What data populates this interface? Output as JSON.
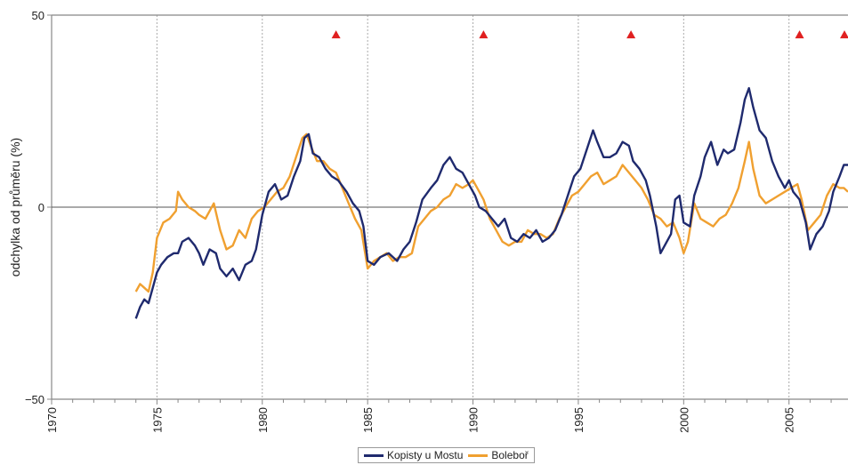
{
  "chart_data": {
    "type": "line",
    "ylabel": "odchylka od průměru (%)",
    "xlim": [
      1970,
      2007.8
    ],
    "ylim": [
      -50,
      50
    ],
    "x_ticks": [
      1970,
      1975,
      1980,
      1985,
      1990,
      1995,
      2000,
      2005
    ],
    "y_ticks": [
      50,
      0,
      -50
    ],
    "y_tick_labels": [
      "50",
      "0",
      "−50"
    ],
    "grid": "vertical-dotted",
    "legend_position": "bottom-center",
    "zero_line": true,
    "colors": {
      "series1": "#1f2a6e",
      "series2": "#f0a030",
      "marker": "#e02020",
      "axis": "#888888",
      "grid": "#aaaaaa"
    },
    "series": [
      {
        "name": "Kopisty u Mostu",
        "color": "#1f2a6e",
        "points": [
          [
            1974.0,
            -29
          ],
          [
            1974.2,
            -26
          ],
          [
            1974.4,
            -24
          ],
          [
            1974.6,
            -25
          ],
          [
            1974.8,
            -21
          ],
          [
            1975.0,
            -17
          ],
          [
            1975.2,
            -15
          ],
          [
            1975.5,
            -13
          ],
          [
            1975.8,
            -12
          ],
          [
            1976.0,
            -12
          ],
          [
            1976.2,
            -9
          ],
          [
            1976.5,
            -8
          ],
          [
            1976.8,
            -10
          ],
          [
            1977.0,
            -12
          ],
          [
            1977.2,
            -15
          ],
          [
            1977.5,
            -11
          ],
          [
            1977.8,
            -12
          ],
          [
            1978.0,
            -16
          ],
          [
            1978.3,
            -18
          ],
          [
            1978.6,
            -16
          ],
          [
            1978.9,
            -19
          ],
          [
            1979.2,
            -15
          ],
          [
            1979.5,
            -14
          ],
          [
            1979.7,
            -11
          ],
          [
            1980.0,
            -2
          ],
          [
            1980.3,
            4
          ],
          [
            1980.6,
            6
          ],
          [
            1980.9,
            2
          ],
          [
            1981.2,
            3
          ],
          [
            1981.5,
            8
          ],
          [
            1981.8,
            12
          ],
          [
            1982.0,
            18
          ],
          [
            1982.2,
            19
          ],
          [
            1982.4,
            14
          ],
          [
            1982.7,
            13
          ],
          [
            1983.0,
            10
          ],
          [
            1983.3,
            8
          ],
          [
            1983.6,
            7
          ],
          [
            1984.0,
            4
          ],
          [
            1984.3,
            1
          ],
          [
            1984.6,
            -1
          ],
          [
            1984.8,
            -5
          ],
          [
            1985.0,
            -14
          ],
          [
            1985.3,
            -15
          ],
          [
            1985.6,
            -13
          ],
          [
            1986.0,
            -12
          ],
          [
            1986.4,
            -14
          ],
          [
            1986.7,
            -11
          ],
          [
            1987.0,
            -9
          ],
          [
            1987.3,
            -4
          ],
          [
            1987.6,
            2
          ],
          [
            1988.0,
            5
          ],
          [
            1988.3,
            7
          ],
          [
            1988.6,
            11
          ],
          [
            1988.9,
            13
          ],
          [
            1989.2,
            10
          ],
          [
            1989.5,
            9
          ],
          [
            1989.8,
            6
          ],
          [
            1990.1,
            3
          ],
          [
            1990.3,
            0
          ],
          [
            1990.6,
            -1
          ],
          [
            1990.9,
            -3
          ],
          [
            1991.2,
            -5
          ],
          [
            1991.5,
            -3
          ],
          [
            1991.8,
            -8
          ],
          [
            1992.1,
            -9
          ],
          [
            1992.4,
            -7
          ],
          [
            1992.7,
            -8
          ],
          [
            1993.0,
            -6
          ],
          [
            1993.3,
            -9
          ],
          [
            1993.6,
            -8
          ],
          [
            1993.9,
            -6
          ],
          [
            1994.2,
            -2
          ],
          [
            1994.5,
            3
          ],
          [
            1994.8,
            8
          ],
          [
            1995.1,
            10
          ],
          [
            1995.4,
            15
          ],
          [
            1995.7,
            20
          ],
          [
            1995.9,
            17
          ],
          [
            1996.2,
            13
          ],
          [
            1996.5,
            13
          ],
          [
            1996.8,
            14
          ],
          [
            1997.1,
            17
          ],
          [
            1997.4,
            16
          ],
          [
            1997.6,
            12
          ],
          [
            1997.9,
            10
          ],
          [
            1998.2,
            7
          ],
          [
            1998.4,
            3
          ],
          [
            1998.7,
            -5
          ],
          [
            1998.9,
            -12
          ],
          [
            1999.1,
            -10
          ],
          [
            1999.4,
            -7
          ],
          [
            1999.6,
            2
          ],
          [
            1999.8,
            3
          ],
          [
            2000.0,
            -4
          ],
          [
            2000.3,
            -5
          ],
          [
            2000.5,
            3
          ],
          [
            2000.8,
            8
          ],
          [
            2001.0,
            13
          ],
          [
            2001.3,
            17
          ],
          [
            2001.6,
            11
          ],
          [
            2001.9,
            15
          ],
          [
            2002.1,
            14
          ],
          [
            2002.4,
            15
          ],
          [
            2002.7,
            22
          ],
          [
            2002.9,
            28
          ],
          [
            2003.1,
            31
          ],
          [
            2003.3,
            26
          ],
          [
            2003.6,
            20
          ],
          [
            2003.9,
            18
          ],
          [
            2004.2,
            12
          ],
          [
            2004.5,
            8
          ],
          [
            2004.8,
            5
          ],
          [
            2005.0,
            7
          ],
          [
            2005.2,
            4
          ],
          [
            2005.5,
            2
          ],
          [
            2005.8,
            -4
          ],
          [
            2006.0,
            -11
          ],
          [
            2006.3,
            -7
          ],
          [
            2006.6,
            -5
          ],
          [
            2006.9,
            -1
          ],
          [
            2007.1,
            4
          ],
          [
            2007.4,
            8
          ],
          [
            2007.6,
            11
          ],
          [
            2007.8,
            11
          ]
        ]
      },
      {
        "name": "Boleboř",
        "color": "#f0a030",
        "points": [
          [
            1974.0,
            -22
          ],
          [
            1974.2,
            -20
          ],
          [
            1974.4,
            -21
          ],
          [
            1974.6,
            -22
          ],
          [
            1974.8,
            -17
          ],
          [
            1975.0,
            -8
          ],
          [
            1975.3,
            -4
          ],
          [
            1975.6,
            -3
          ],
          [
            1975.9,
            -1
          ],
          [
            1976.0,
            4
          ],
          [
            1976.2,
            2
          ],
          [
            1976.5,
            0
          ],
          [
            1976.8,
            -1
          ],
          [
            1977.0,
            -2
          ],
          [
            1977.3,
            -3
          ],
          [
            1977.5,
            -1
          ],
          [
            1977.7,
            1
          ],
          [
            1978.0,
            -6
          ],
          [
            1978.3,
            -11
          ],
          [
            1978.6,
            -10
          ],
          [
            1978.9,
            -6
          ],
          [
            1979.2,
            -8
          ],
          [
            1979.5,
            -3
          ],
          [
            1979.8,
            -1
          ],
          [
            1980.1,
            0
          ],
          [
            1980.4,
            2
          ],
          [
            1980.7,
            4
          ],
          [
            1981.0,
            5
          ],
          [
            1981.3,
            8
          ],
          [
            1981.6,
            13
          ],
          [
            1981.9,
            18
          ],
          [
            1982.1,
            19
          ],
          [
            1982.3,
            16
          ],
          [
            1982.6,
            12
          ],
          [
            1982.9,
            12
          ],
          [
            1983.2,
            10
          ],
          [
            1983.5,
            9
          ],
          [
            1983.8,
            5
          ],
          [
            1984.1,
            1
          ],
          [
            1984.4,
            -3
          ],
          [
            1984.7,
            -6
          ],
          [
            1985.0,
            -16
          ],
          [
            1985.3,
            -14
          ],
          [
            1985.6,
            -13
          ],
          [
            1985.9,
            -12
          ],
          [
            1986.2,
            -14
          ],
          [
            1986.5,
            -13
          ],
          [
            1986.8,
            -13
          ],
          [
            1987.1,
            -12
          ],
          [
            1987.4,
            -5
          ],
          [
            1987.7,
            -3
          ],
          [
            1988.0,
            -1
          ],
          [
            1988.3,
            0
          ],
          [
            1988.6,
            2
          ],
          [
            1988.9,
            3
          ],
          [
            1989.2,
            6
          ],
          [
            1989.5,
            5
          ],
          [
            1989.8,
            6
          ],
          [
            1990.0,
            7
          ],
          [
            1990.2,
            5
          ],
          [
            1990.5,
            2
          ],
          [
            1990.8,
            -3
          ],
          [
            1991.1,
            -6
          ],
          [
            1991.4,
            -9
          ],
          [
            1991.7,
            -10
          ],
          [
            1992.0,
            -9
          ],
          [
            1992.3,
            -9
          ],
          [
            1992.6,
            -6
          ],
          [
            1992.9,
            -7
          ],
          [
            1993.2,
            -7
          ],
          [
            1993.5,
            -8
          ],
          [
            1993.8,
            -7
          ],
          [
            1994.1,
            -3
          ],
          [
            1994.4,
            0
          ],
          [
            1994.7,
            3
          ],
          [
            1995.0,
            4
          ],
          [
            1995.3,
            6
          ],
          [
            1995.6,
            8
          ],
          [
            1995.9,
            9
          ],
          [
            1996.2,
            6
          ],
          [
            1996.5,
            7
          ],
          [
            1996.8,
            8
          ],
          [
            1997.1,
            11
          ],
          [
            1997.4,
            9
          ],
          [
            1997.7,
            7
          ],
          [
            1998.0,
            5
          ],
          [
            1998.3,
            2
          ],
          [
            1998.6,
            -2
          ],
          [
            1998.9,
            -3
          ],
          [
            1999.2,
            -5
          ],
          [
            1999.5,
            -4
          ],
          [
            1999.8,
            -8
          ],
          [
            2000.0,
            -12
          ],
          [
            2000.2,
            -9
          ],
          [
            2000.5,
            1
          ],
          [
            2000.8,
            -3
          ],
          [
            2001.1,
            -4
          ],
          [
            2001.4,
            -5
          ],
          [
            2001.7,
            -3
          ],
          [
            2002.0,
            -2
          ],
          [
            2002.3,
            1
          ],
          [
            2002.6,
            5
          ],
          [
            2002.9,
            12
          ],
          [
            2003.1,
            17
          ],
          [
            2003.3,
            10
          ],
          [
            2003.6,
            3
          ],
          [
            2003.9,
            1
          ],
          [
            2004.2,
            2
          ],
          [
            2004.5,
            3
          ],
          [
            2004.8,
            4
          ],
          [
            2005.1,
            5
          ],
          [
            2005.4,
            6
          ],
          [
            2005.6,
            2
          ],
          [
            2005.9,
            -6
          ],
          [
            2006.2,
            -4
          ],
          [
            2006.5,
            -2
          ],
          [
            2006.8,
            3
          ],
          [
            2007.1,
            6
          ],
          [
            2007.4,
            5
          ],
          [
            2007.6,
            5
          ],
          [
            2007.8,
            4
          ]
        ]
      }
    ],
    "markers": [
      {
        "x": 1983.5,
        "y": 45
      },
      {
        "x": 1990.5,
        "y": 45
      },
      {
        "x": 1997.5,
        "y": 45
      },
      {
        "x": 2005.5,
        "y": 45
      },
      {
        "x": 2007.8,
        "y": 45
      }
    ]
  }
}
